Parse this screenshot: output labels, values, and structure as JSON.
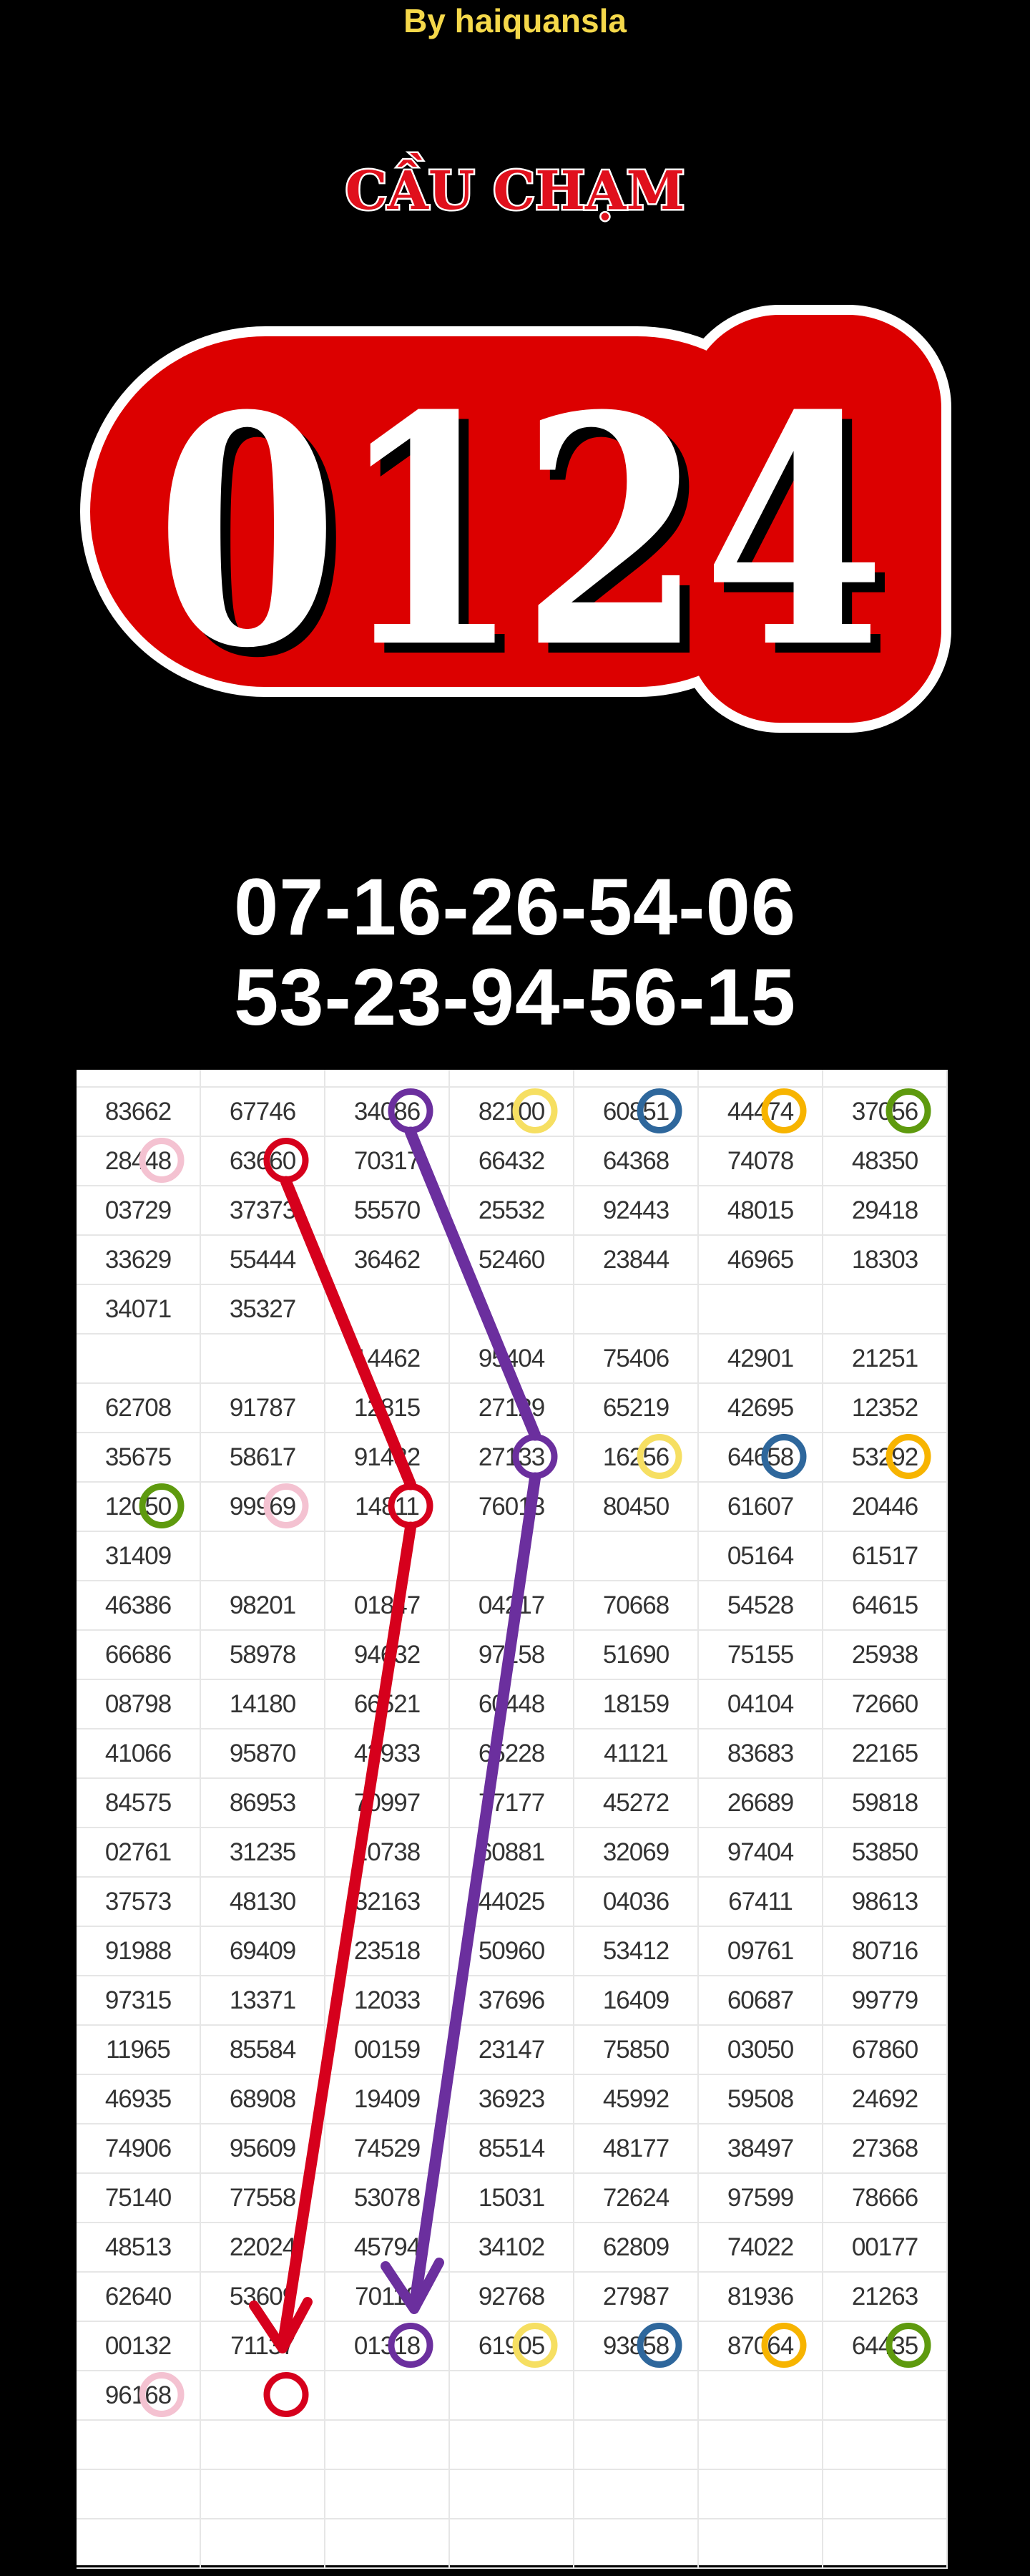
{
  "byline": "By haiquansla",
  "logo": {
    "subtitle": "CẦU CHẠM",
    "number": "0124"
  },
  "predictions": [
    "07-16-26-54-06",
    "53-23-94-56-15"
  ],
  "colors": {
    "purple": "#6b2f9e",
    "yellow": "#f6df62",
    "blue": "#2e679c",
    "orange": "#f7b400",
    "green": "#5e9a0e",
    "pink": "#f4c2d1",
    "red": "#d6001c"
  },
  "table": {
    "rows": [
      [
        "83662",
        "67746",
        "34086",
        "82100",
        "60851",
        "44474",
        "37056"
      ],
      [
        "28448",
        "63660",
        "70317",
        "66432",
        "64368",
        "74078",
        "48350"
      ],
      [
        "03729",
        "37373",
        "55570",
        "25532",
        "92443",
        "48015",
        "29418"
      ],
      [
        "33629",
        "55444",
        "36462",
        "52460",
        "23844",
        "46965",
        "18303"
      ],
      [
        "34071",
        "35327",
        "",
        "",
        "",
        "",
        ""
      ],
      [
        "",
        "",
        "14462",
        "95404",
        "75406",
        "42901",
        "21251"
      ],
      [
        "62708",
        "91787",
        "12815",
        "27129",
        "65219",
        "42695",
        "12352"
      ],
      [
        "35675",
        "58617",
        "91482",
        "27133",
        "16256",
        "64658",
        "53292"
      ],
      [
        "12050",
        "99969",
        "14811",
        "76013",
        "80450",
        "61607",
        "20446"
      ],
      [
        "31409",
        "",
        "",
        "",
        "",
        "05164",
        "61517"
      ],
      [
        "46386",
        "98201",
        "01847",
        "04217",
        "70668",
        "54528",
        "64615"
      ],
      [
        "66686",
        "58978",
        "94632",
        "97158",
        "51690",
        "75155",
        "25938"
      ],
      [
        "08798",
        "14180",
        "66521",
        "60448",
        "18159",
        "04104",
        "72660"
      ],
      [
        "41066",
        "95870",
        "42933",
        "65228",
        "41121",
        "83683",
        "22165"
      ],
      [
        "84575",
        "86953",
        "70997",
        "77177",
        "45272",
        "26689",
        "59818"
      ],
      [
        "02761",
        "31235",
        "20738",
        "60881",
        "32069",
        "97404",
        "53850"
      ],
      [
        "37573",
        "48130",
        "32163",
        "44025",
        "04036",
        "67411",
        "98613"
      ],
      [
        "91988",
        "69409",
        "23518",
        "50960",
        "53412",
        "09761",
        "80716"
      ],
      [
        "97315",
        "13371",
        "12033",
        "37696",
        "16409",
        "60687",
        "99779"
      ],
      [
        "11965",
        "85584",
        "00159",
        "23147",
        "75850",
        "03050",
        "67860"
      ],
      [
        "46935",
        "68908",
        "19409",
        "36923",
        "45992",
        "59508",
        "24692"
      ],
      [
        "74906",
        "95609",
        "74529",
        "85514",
        "48177",
        "38497",
        "27368"
      ],
      [
        "75140",
        "77558",
        "53078",
        "15031",
        "72624",
        "97599",
        "78666"
      ],
      [
        "48513",
        "22024",
        "45794",
        "34102",
        "62809",
        "74022",
        "00177"
      ],
      [
        "62640",
        "53609",
        "70118",
        "92768",
        "27987",
        "81936",
        "21263"
      ],
      [
        "00132",
        "71137",
        "01318",
        "61905",
        "93858",
        "87064",
        "64435"
      ],
      [
        "96168",
        "",
        "",
        "",
        "",
        "",
        ""
      ],
      [
        "",
        "",
        "",
        "",
        "",
        "",
        ""
      ],
      [
        "",
        "",
        "",
        "",
        "",
        "",
        ""
      ],
      [
        "",
        "",
        "",
        "",
        "",
        "",
        ""
      ]
    ],
    "highlights": [
      {
        "row": 1,
        "col": 2,
        "color": "purple"
      },
      {
        "row": 1,
        "col": 3,
        "color": "yellow"
      },
      {
        "row": 1,
        "col": 4,
        "color": "blue"
      },
      {
        "row": 1,
        "col": 5,
        "color": "orange"
      },
      {
        "row": 1,
        "col": 6,
        "color": "green"
      },
      {
        "row": 2,
        "col": 0,
        "color": "pink"
      },
      {
        "row": 2,
        "col": 1,
        "color": "red"
      },
      {
        "row": 8,
        "col": 3,
        "color": "purple"
      },
      {
        "row": 8,
        "col": 4,
        "color": "yellow"
      },
      {
        "row": 8,
        "col": 5,
        "color": "blue"
      },
      {
        "row": 8,
        "col": 6,
        "color": "orange"
      },
      {
        "row": 9,
        "col": 0,
        "color": "green"
      },
      {
        "row": 9,
        "col": 1,
        "color": "pink"
      },
      {
        "row": 9,
        "col": 2,
        "color": "red"
      },
      {
        "row": 26,
        "col": 2,
        "color": "purple"
      },
      {
        "row": 26,
        "col": 3,
        "color": "yellow"
      },
      {
        "row": 26,
        "col": 4,
        "color": "blue"
      },
      {
        "row": 26,
        "col": 5,
        "color": "orange"
      },
      {
        "row": 26,
        "col": 6,
        "color": "green"
      },
      {
        "row": 27,
        "col": 0,
        "color": "pink"
      },
      {
        "row": 27,
        "col": 1,
        "color": "red"
      }
    ]
  }
}
